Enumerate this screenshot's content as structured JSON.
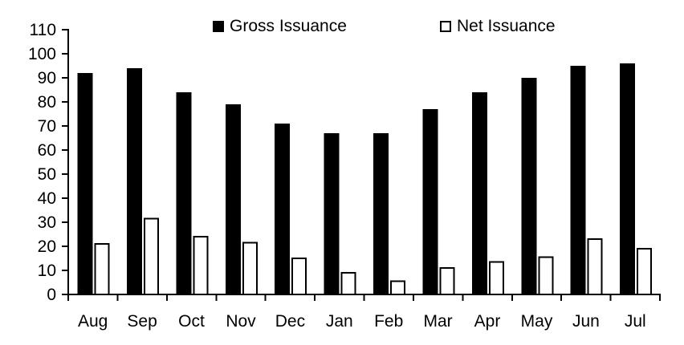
{
  "chart_data": {
    "type": "bar",
    "title": "",
    "xlabel": "",
    "ylabel": "",
    "categories": [
      "Aug",
      "Sep",
      "Oct",
      "Nov",
      "Dec",
      "Jan",
      "Feb",
      "Mar",
      "Apr",
      "May",
      "Jun",
      "Jul"
    ],
    "series": [
      {
        "name": "Gross Issuance",
        "values": [
          92,
          94,
          84,
          79,
          71,
          67,
          67,
          77,
          84,
          90,
          95,
          96
        ],
        "fill": "#000000",
        "stroke": "#000000"
      },
      {
        "name": "Net Issuance",
        "values": [
          21,
          31.5,
          24,
          21.5,
          15,
          9,
          5.5,
          11,
          13.5,
          15.5,
          23,
          19
        ],
        "fill": "#ffffff",
        "stroke": "#000000"
      }
    ],
    "ylim": [
      0,
      110
    ],
    "yticks": [
      0,
      10,
      20,
      30,
      40,
      50,
      60,
      70,
      80,
      90,
      100,
      110
    ],
    "grid": false,
    "legend_position": "top",
    "axis_color": "#000000",
    "text_color": "#000000"
  },
  "legend": {
    "swatches": [
      {
        "icon": "filled-square-icon"
      },
      {
        "icon": "outlined-square-icon"
      }
    ]
  }
}
